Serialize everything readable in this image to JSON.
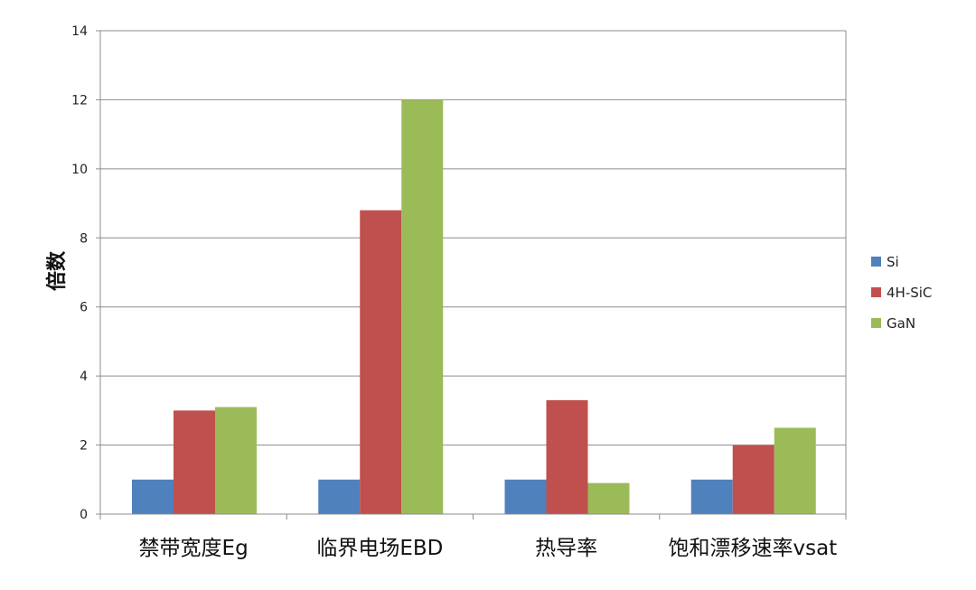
{
  "chart_data": {
    "type": "bar",
    "title": "",
    "xlabel": "",
    "ylabel": "倍数",
    "ylim": [
      0,
      14
    ],
    "yticks": [
      0,
      2,
      4,
      6,
      8,
      10,
      12,
      14
    ],
    "grid": true,
    "legend_position": "right",
    "categories": [
      "禁带宽度Eg",
      "临界电场EBD",
      "热导率",
      "饱和漂移速率vsat"
    ],
    "series": [
      {
        "name": "Si",
        "color": "#4f81bd",
        "values": [
          1,
          1,
          1,
          1
        ]
      },
      {
        "name": "4H-SiC",
        "color": "#c0504d",
        "values": [
          3.0,
          8.8,
          3.3,
          2.0
        ]
      },
      {
        "name": "GaN",
        "color": "#9bbb59",
        "values": [
          3.1,
          12.0,
          0.9,
          2.5
        ]
      }
    ]
  }
}
